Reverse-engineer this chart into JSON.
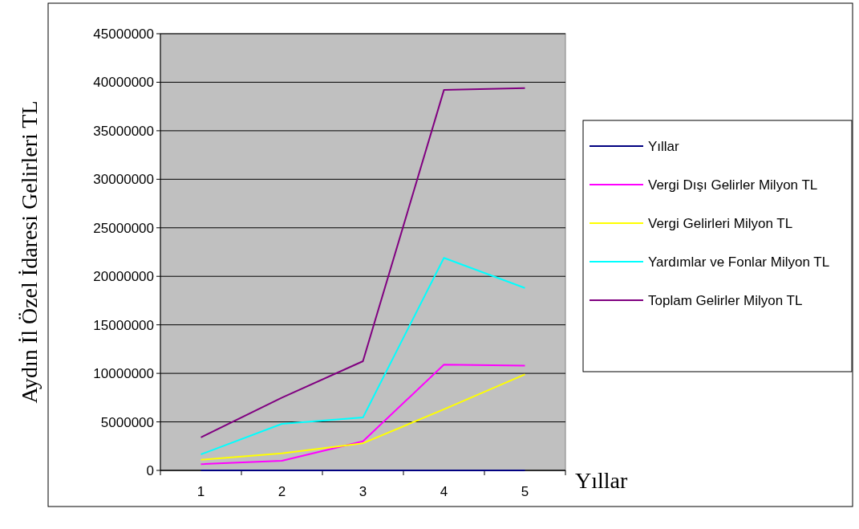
{
  "chart_data": {
    "type": "line",
    "xlabel": "Yıllar",
    "ylabel": "Aydın İl Özel İdaresi Gelirleri TL",
    "categories": [
      "1",
      "2",
      "3",
      "4",
      "5"
    ],
    "ylim": [
      0,
      45000000
    ],
    "yticks": [
      0,
      5000000,
      10000000,
      15000000,
      20000000,
      25000000,
      30000000,
      35000000,
      40000000,
      45000000
    ],
    "grid": "y",
    "legend": "right",
    "marker": "none",
    "line_style": "solid",
    "series": [
      {
        "name": "Yıllar",
        "color": "#000080",
        "values": [
          0,
          0,
          0,
          0,
          0
        ]
      },
      {
        "name": "Vergi Dışı Gelirler Milyon TL",
        "color": "#ff00ff",
        "values": [
          650000,
          1000000,
          3000000,
          10900000,
          10800000
        ]
      },
      {
        "name": "Vergi Gelirleri Milyon TL",
        "color": "#ffff00",
        "values": [
          1100000,
          1750000,
          2800000,
          6300000,
          9900000
        ]
      },
      {
        "name": "Yardımlar ve Fonlar Milyon TL",
        "color": "#00ffff",
        "values": [
          1650000,
          4800000,
          5450000,
          21900000,
          18800000
        ]
      },
      {
        "name": "Toplam Gelirler Milyon TL",
        "color": "#800080",
        "values": [
          3400000,
          7500000,
          11250000,
          39200000,
          39400000
        ]
      }
    ]
  }
}
